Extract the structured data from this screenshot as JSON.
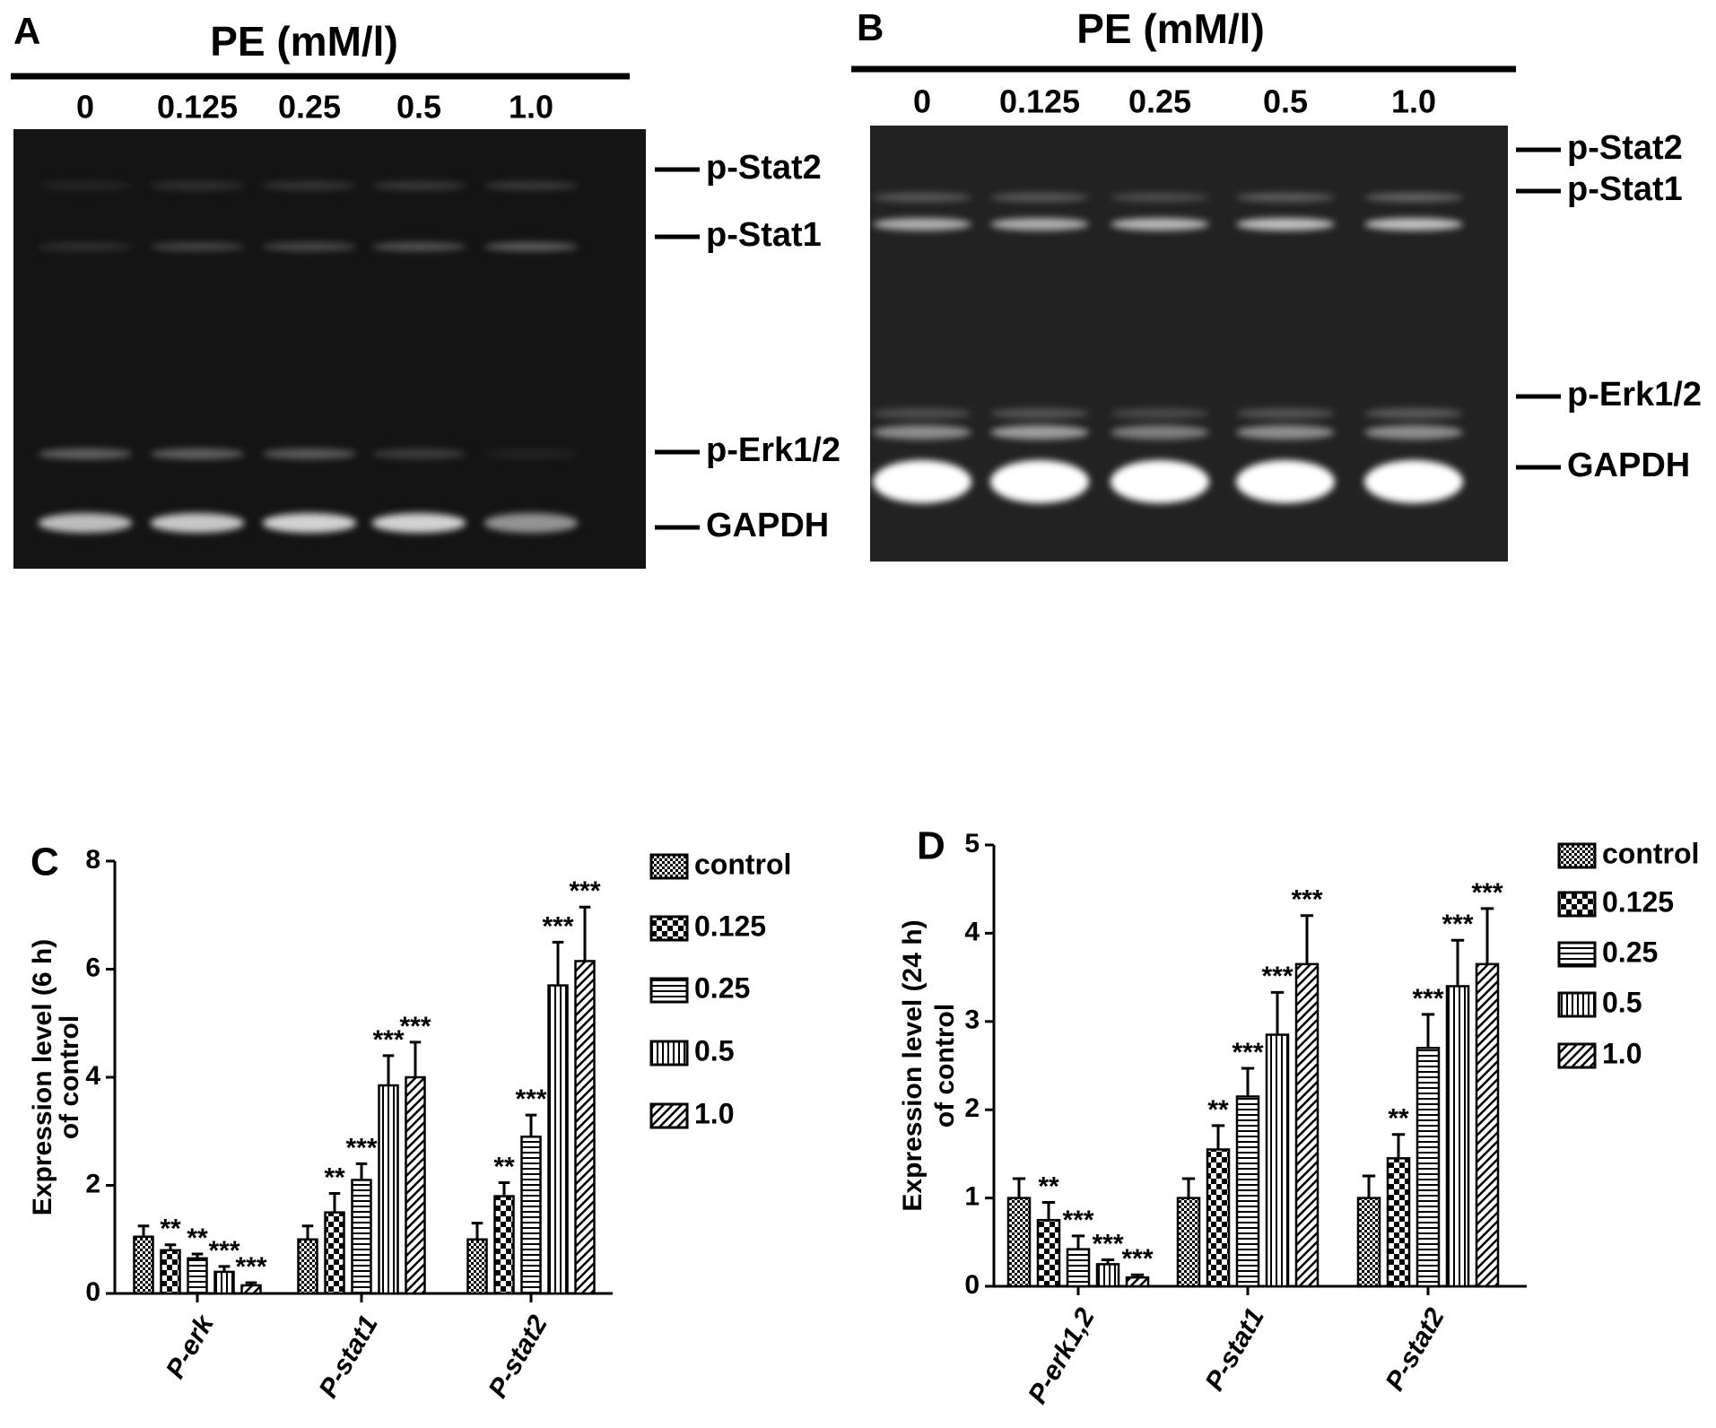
{
  "blots": [
    {
      "panel": "A",
      "title": "PE (mM/l)",
      "lanes": [
        "0",
        "0.125",
        "0.25",
        "0.5",
        "1.0"
      ],
      "bands": [
        "p-Stat2",
        "p-Stat1",
        "p-Erk1/2",
        "GAPDH"
      ]
    },
    {
      "panel": "B",
      "title": "PE (mM/l)",
      "lanes": [
        "0",
        "0.125",
        "0.25",
        "0.5",
        "1.0"
      ],
      "bands": [
        "p-Stat2",
        "p-Stat1",
        "p-Erk1/2",
        "GAPDH"
      ]
    }
  ],
  "chart_data": [
    {
      "type": "bar",
      "panel": "C",
      "ylabel_lines": [
        "Expression level  (6 h)",
        "of control"
      ],
      "categories": [
        "P-erk",
        "P-stat1",
        "P-stat2"
      ],
      "ylim": [
        0,
        8
      ],
      "yticks": [
        0,
        2,
        4,
        6,
        8
      ],
      "series": [
        {
          "name": "control",
          "color": "#000000",
          "pattern": "fine-checker",
          "values": [
            1.05,
            1.0,
            1.0
          ],
          "errors": [
            0.2,
            0.25,
            0.3
          ],
          "significance": [
            null,
            null,
            null
          ]
        },
        {
          "name": "0.125",
          "color": "#000000",
          "pattern": "coarse-checker",
          "values": [
            0.8,
            1.5,
            1.8
          ],
          "errors": [
            0.1,
            0.35,
            0.25
          ],
          "significance": [
            "**",
            "**",
            "**"
          ]
        },
        {
          "name": "0.25",
          "color": "#000000",
          "pattern": "horizontal",
          "values": [
            0.65,
            2.1,
            2.9
          ],
          "errors": [
            0.08,
            0.3,
            0.4
          ],
          "significance": [
            "**",
            "***",
            "***"
          ]
        },
        {
          "name": "0.5",
          "color": "#000000",
          "pattern": "vertical",
          "values": [
            0.4,
            3.85,
            5.7
          ],
          "errors": [
            0.1,
            0.55,
            0.8
          ],
          "significance": [
            "***",
            "***",
            "***"
          ]
        },
        {
          "name": "1.0",
          "color": "#000000",
          "pattern": "diagonal",
          "values": [
            0.15,
            4.0,
            6.15
          ],
          "errors": [
            0.05,
            0.65,
            1.0
          ],
          "significance": [
            "***",
            "***",
            "***"
          ]
        }
      ]
    },
    {
      "type": "bar",
      "panel": "D",
      "ylabel_lines": [
        "Expression level  (24 h)",
        "of control"
      ],
      "categories": [
        "P-erk1,2",
        "P-stat1",
        "P-stat2"
      ],
      "ylim": [
        0,
        5
      ],
      "yticks": [
        0,
        1,
        2,
        3,
        4,
        5
      ],
      "series": [
        {
          "name": "control",
          "color": "#000000",
          "pattern": "fine-checker",
          "values": [
            1.0,
            1.0,
            1.0
          ],
          "errors": [
            0.22,
            0.22,
            0.25
          ],
          "significance": [
            null,
            null,
            null
          ]
        },
        {
          "name": "0.125",
          "color": "#000000",
          "pattern": "coarse-checker",
          "values": [
            0.75,
            1.55,
            1.45
          ],
          "errors": [
            0.2,
            0.27,
            0.27
          ],
          "significance": [
            "**",
            "**",
            "**"
          ]
        },
        {
          "name": "0.25",
          "color": "#000000",
          "pattern": "horizontal",
          "values": [
            0.42,
            2.15,
            2.7
          ],
          "errors": [
            0.15,
            0.32,
            0.38
          ],
          "significance": [
            "***",
            "***",
            "***"
          ]
        },
        {
          "name": "0.5",
          "color": "#000000",
          "pattern": "vertical",
          "values": [
            0.25,
            2.85,
            3.4
          ],
          "errors": [
            0.05,
            0.48,
            0.52
          ],
          "significance": [
            "***",
            "***",
            "***"
          ]
        },
        {
          "name": "1.0",
          "color": "#000000",
          "pattern": "diagonal",
          "values": [
            0.1,
            3.65,
            3.65
          ],
          "errors": [
            0.03,
            0.55,
            0.63
          ],
          "significance": [
            "***",
            "***",
            "***"
          ]
        }
      ]
    }
  ]
}
